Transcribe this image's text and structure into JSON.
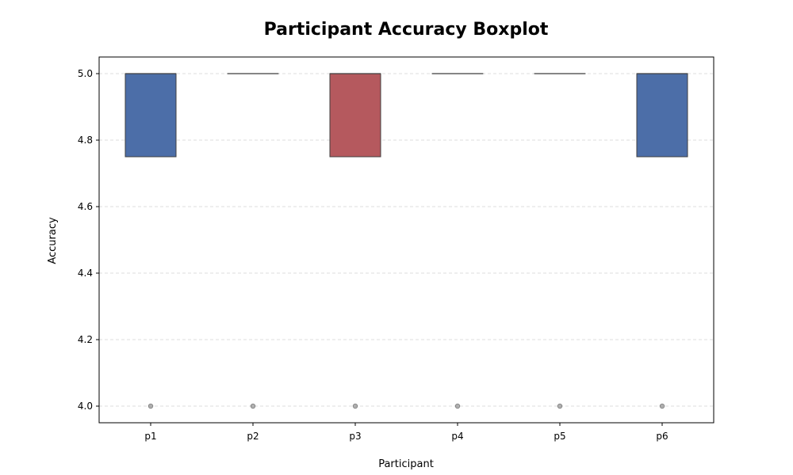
{
  "chart_data": {
    "type": "boxplot",
    "title": "Participant Accuracy Boxplot",
    "xlabel": "Participant",
    "ylabel": "Accuracy",
    "categories": [
      "p1",
      "p2",
      "p3",
      "p4",
      "p5",
      "p6"
    ],
    "ylim": [
      3.95,
      5.05
    ],
    "yticks": [
      4.0,
      4.2,
      4.4,
      4.6,
      4.8,
      5.0
    ],
    "ytick_labels": [
      "4.0",
      "4.2",
      "4.4",
      "4.6",
      "4.8",
      "5.0"
    ],
    "grid": true,
    "boxes": [
      {
        "category": "p1",
        "q1": 4.75,
        "median": 5.0,
        "q3": 5.0,
        "whisker_low": 4.75,
        "whisker_high": 5.0,
        "outliers": [
          4.0
        ],
        "color": "#4c6ea8"
      },
      {
        "category": "p2",
        "q1": 5.0,
        "median": 5.0,
        "q3": 5.0,
        "whisker_low": 5.0,
        "whisker_high": 5.0,
        "outliers": [
          4.0
        ],
        "color": "#4c6ea8"
      },
      {
        "category": "p3",
        "q1": 4.75,
        "median": 5.0,
        "q3": 5.0,
        "whisker_low": 4.75,
        "whisker_high": 5.0,
        "outliers": [
          4.0
        ],
        "color": "#b5595e"
      },
      {
        "category": "p4",
        "q1": 5.0,
        "median": 5.0,
        "q3": 5.0,
        "whisker_low": 5.0,
        "whisker_high": 5.0,
        "outliers": [
          4.0
        ],
        "color": "#4c6ea8"
      },
      {
        "category": "p5",
        "q1": 5.0,
        "median": 5.0,
        "q3": 5.0,
        "whisker_low": 5.0,
        "whisker_high": 5.0,
        "outliers": [
          4.0
        ],
        "color": "#4c6ea8"
      },
      {
        "category": "p6",
        "q1": 4.75,
        "median": 5.0,
        "q3": 5.0,
        "whisker_low": 4.75,
        "whisker_high": 5.0,
        "outliers": [
          4.0
        ],
        "color": "#4c6ea8"
      }
    ],
    "colors": {
      "box_edge": "#3f3f3f",
      "grid": "#dddddd",
      "outlier": "#888888"
    }
  }
}
